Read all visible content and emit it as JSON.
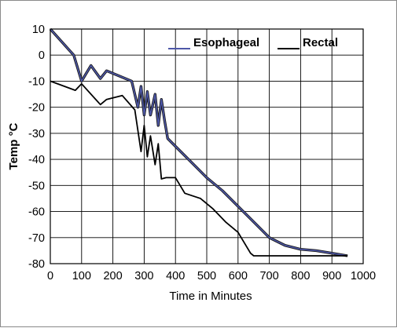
{
  "chart_data": {
    "type": "line",
    "xlabel": "Time in Minutes",
    "ylabel": "Temp °C",
    "xlim": [
      0,
      1000
    ],
    "ylim": [
      -80,
      10
    ],
    "xticks": [
      0,
      100,
      200,
      300,
      400,
      500,
      600,
      700,
      800,
      900,
      1000
    ],
    "yticks": [
      10,
      0,
      -10,
      -20,
      -30,
      -40,
      -50,
      -60,
      -70,
      -80
    ],
    "grid": true,
    "legend_position": "top-right",
    "series": [
      {
        "name": "Esophageal",
        "color": "#4d57a8",
        "x": [
          0,
          75,
          100,
          130,
          160,
          180,
          220,
          260,
          280,
          290,
          300,
          310,
          320,
          335,
          345,
          355,
          365,
          375,
          400,
          450,
          500,
          550,
          600,
          650,
          700,
          750,
          800,
          850,
          900,
          950
        ],
        "y": [
          10,
          0,
          -10,
          -4,
          -9,
          -6,
          -8,
          -10,
          -20,
          -12,
          -23,
          -14,
          -23,
          -15,
          -27,
          -17,
          -25,
          -32,
          -35,
          -41,
          -47,
          -52,
          -58,
          -64,
          -70,
          -73,
          -74.5,
          -75,
          -76,
          -77
        ]
      },
      {
        "name": "Rectal",
        "color": "#000000",
        "x": [
          0,
          80,
          100,
          160,
          180,
          230,
          270,
          290,
          300,
          310,
          320,
          335,
          345,
          355,
          370,
          400,
          430,
          480,
          520,
          560,
          600,
          640,
          650,
          700,
          800,
          900,
          950
        ],
        "y": [
          -10,
          -13.5,
          -11,
          -19,
          -17,
          -15.5,
          -21,
          -37,
          -27,
          -39,
          -31,
          -42,
          -34,
          -47.5,
          -47,
          -47,
          -53,
          -55,
          -59,
          -64,
          -68,
          -76,
          -77,
          -77,
          -77,
          -77,
          -77
        ]
      }
    ]
  }
}
